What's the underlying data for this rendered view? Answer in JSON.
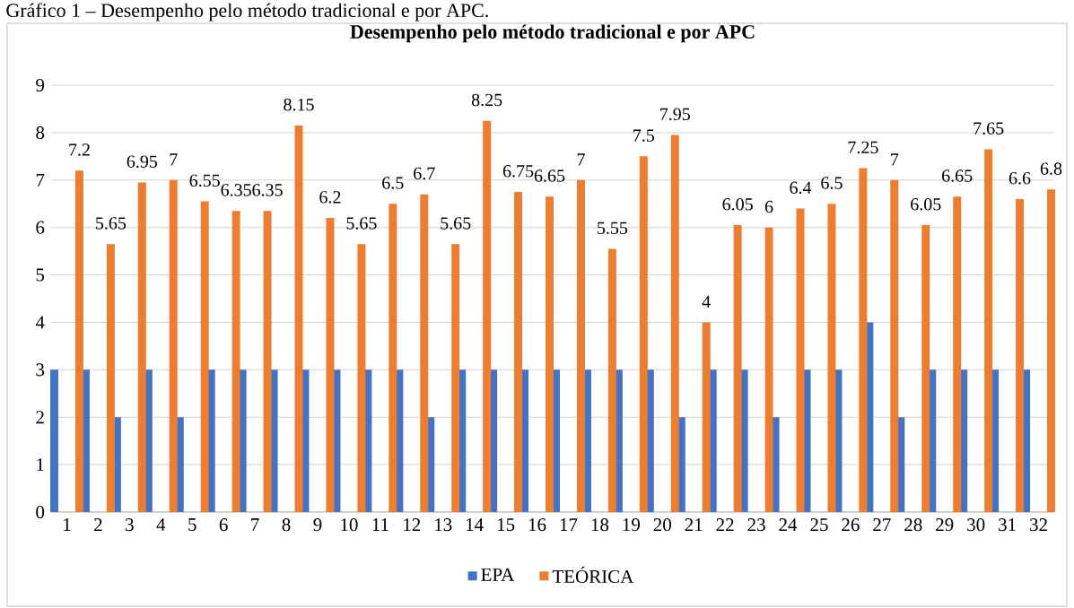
{
  "chart_data": {
    "type": "bar",
    "title": "Desempenho pelo método tradicional e por APC",
    "annotations": [
      "Gráfico 1 – Desempenho pelo método tradicional e por APC."
    ],
    "categories": [
      "1",
      "2",
      "3",
      "4",
      "5",
      "6",
      "7",
      "8",
      "9",
      "10",
      "11",
      "12",
      "13",
      "14",
      "15",
      "16",
      "17",
      "18",
      "19",
      "20",
      "21",
      "22",
      "23",
      "24",
      "25",
      "26",
      "27",
      "28",
      "29",
      "30",
      "31",
      "32"
    ],
    "series": [
      {
        "name": "EPA",
        "color": "#4472c4",
        "values": [
          3,
          3,
          2,
          3,
          2,
          3,
          3,
          3,
          3,
          3,
          3,
          3,
          2,
          3,
          3,
          3,
          3,
          3,
          3,
          3,
          2,
          3,
          3,
          2,
          3,
          3,
          4,
          2,
          3,
          3,
          3,
          3
        ]
      },
      {
        "name": "TEÓRICA",
        "color": "#ed7d31",
        "values": [
          7.2,
          5.65,
          6.95,
          7,
          6.55,
          6.35,
          6.35,
          8.15,
          6.2,
          5.65,
          6.5,
          6.7,
          5.65,
          8.25,
          6.75,
          6.65,
          7,
          5.55,
          7.5,
          7.95,
          4,
          6.05,
          6,
          6.4,
          6.5,
          7.25,
          7,
          6.05,
          6.65,
          7.65,
          6.6,
          6.8
        ],
        "value_labels": [
          "7.2",
          "5.65",
          "6.95",
          "7",
          "6.55",
          "6.35",
          "6.35",
          "8.15",
          "6.2",
          "5.65",
          "6.5",
          "6.7",
          "5.65",
          "8.25",
          "6.75",
          "6.65",
          "7",
          "5.55",
          "7.5",
          "7.95",
          "4",
          "6.05",
          "6",
          "6.4",
          "6.5",
          "7.25",
          "7",
          "6.05",
          "6.65",
          "7.65",
          "6.6",
          "6.8"
        ]
      }
    ],
    "ylim": [
      0,
      9
    ],
    "yticks": [
      0,
      1,
      2,
      3,
      4,
      5,
      6,
      7,
      8,
      9
    ],
    "grid": "y",
    "legend": "bottom"
  }
}
